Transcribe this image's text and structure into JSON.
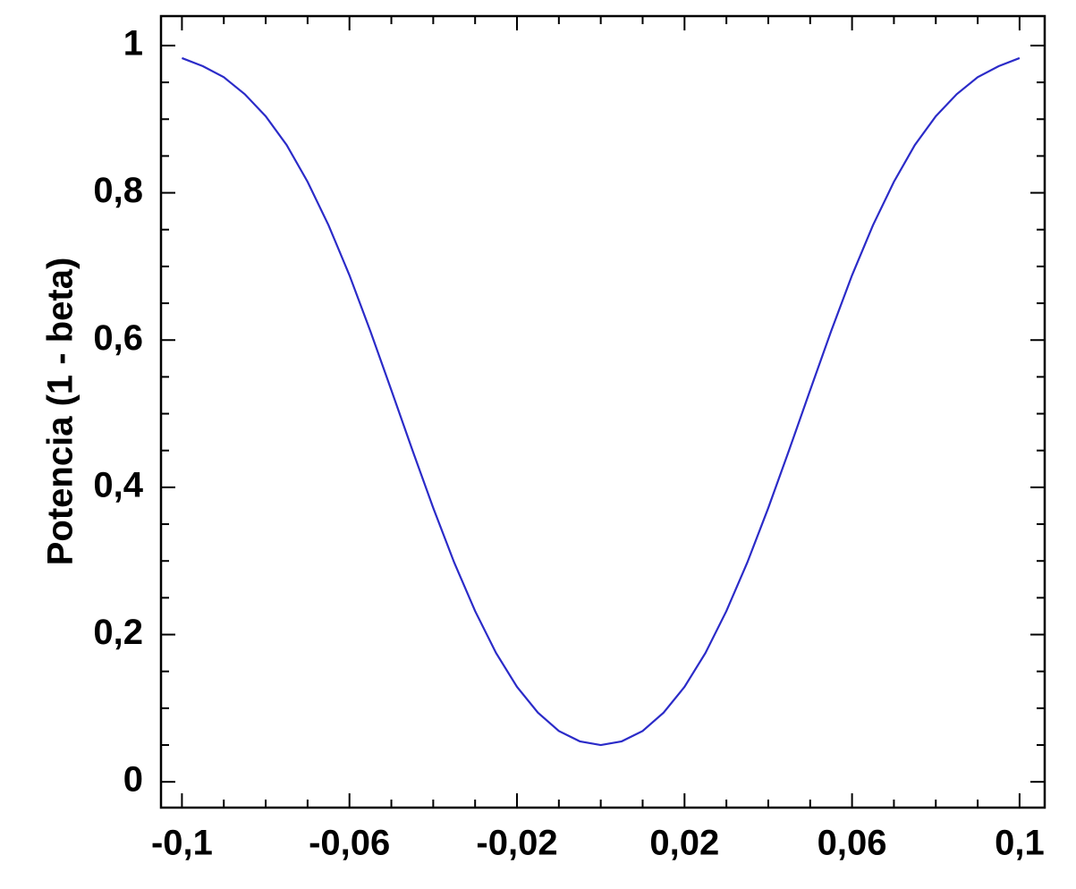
{
  "chart_data": {
    "type": "line",
    "y_label": "Potencia (1 - beta)",
    "x": [
      -0.1,
      -0.095,
      -0.09,
      -0.085,
      -0.08,
      -0.075,
      -0.07,
      -0.065,
      -0.06,
      -0.055,
      -0.05,
      -0.045,
      -0.04,
      -0.035,
      -0.03,
      -0.025,
      -0.02,
      -0.015,
      -0.01,
      -0.005,
      0,
      0.005,
      0.01,
      0.015,
      0.02,
      0.025,
      0.03,
      0.035,
      0.04,
      0.045,
      0.05,
      0.055,
      0.06,
      0.065,
      0.07,
      0.075,
      0.08,
      0.085,
      0.09,
      0.095,
      0.1
    ],
    "series": [
      {
        "color": "#2b2bc8",
        "values": [
          0.983,
          0.972,
          0.957,
          0.934,
          0.904,
          0.865,
          0.815,
          0.756,
          0.688,
          0.612,
          0.532,
          0.451,
          0.372,
          0.298,
          0.232,
          0.175,
          0.129,
          0.094,
          0.069,
          0.055,
          0.05,
          0.055,
          0.069,
          0.094,
          0.129,
          0.175,
          0.232,
          0.298,
          0.372,
          0.451,
          0.532,
          0.612,
          0.688,
          0.756,
          0.815,
          0.865,
          0.904,
          0.934,
          0.957,
          0.972,
          0.983
        ]
      }
    ],
    "xlim": [
      -0.105,
      0.106
    ],
    "ylim": [
      -0.035,
      1.04
    ],
    "xticks": [
      {
        "value": -0.1,
        "label": "-0,1"
      },
      {
        "value": -0.06,
        "label": "-0,06"
      },
      {
        "value": -0.02,
        "label": "-0,02"
      },
      {
        "value": 0.02,
        "label": "0,02"
      },
      {
        "value": 0.06,
        "label": "0,06"
      },
      {
        "value": 0.1,
        "label": "0,1"
      }
    ],
    "yticks": [
      0,
      {
        "value": 0.2,
        "label": "0,2"
      },
      {
        "value": 0.4,
        "label": "0,4"
      },
      {
        "value": 0.6,
        "label": "0,6"
      },
      {
        "value": 0.8,
        "label": "0,8"
      },
      1
    ],
    "xminorticks": [
      -0.09,
      -0.08,
      -0.07,
      -0.05,
      -0.04,
      -0.03,
      -0.01,
      0,
      0.01,
      0.03,
      0.04,
      0.05,
      0.07,
      0.08,
      0.09
    ],
    "yminorticks": [
      0.05,
      0.1,
      0.15,
      0.25,
      0.3,
      0.35,
      0.45,
      0.5,
      0.55,
      0.65,
      0.7,
      0.75,
      0.85,
      0.9,
      0.95
    ],
    "grid": false
  }
}
